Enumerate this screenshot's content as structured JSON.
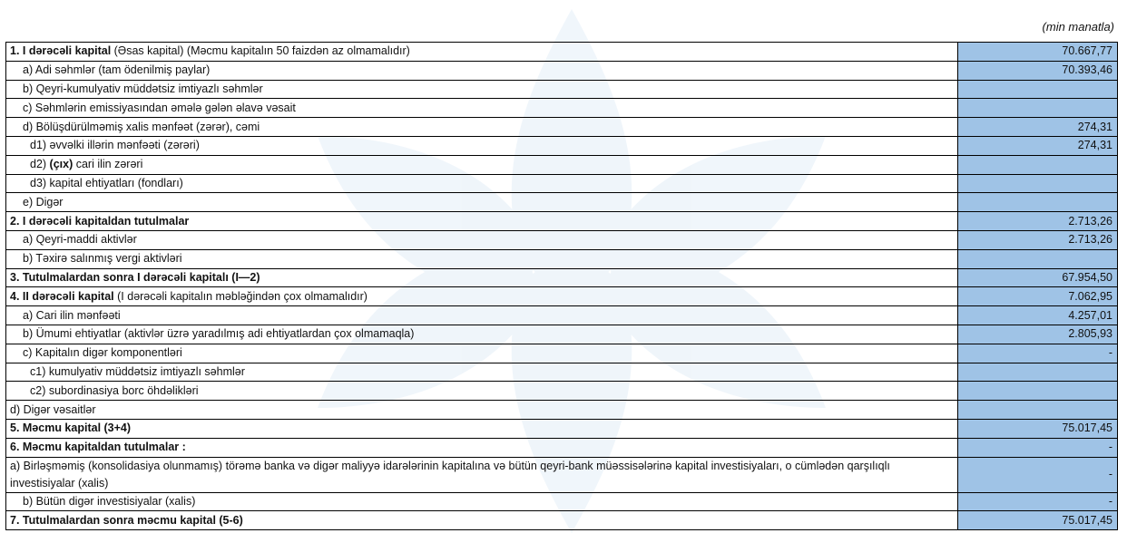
{
  "unit_label": "(min manatla)",
  "accent_color": "#9fc3e6",
  "rows": [
    {
      "bold": "1. I dərəcəli kapital",
      "label": " (Əsas kapital) (Məcmu kapitalın 50 faizdən  az olmamalıdır)",
      "value": "70.667,77",
      "indent": 0
    },
    {
      "bold": "",
      "label": "a) Adi səhmlər (tam ödenilmiş paylar)",
      "value": "70.393,46",
      "indent": 1
    },
    {
      "bold": "",
      "label": "b) Qeyri-kumulyativ müddətsiz imtiyazlı səhmlər",
      "value": "",
      "indent": 1
    },
    {
      "bold": "",
      "label": "c) Səhmlərin emissiyasından əmələ gələn  əlavə vəsait",
      "value": "",
      "indent": 1
    },
    {
      "bold": "",
      "label": "d)   Bölüşdürülməmiş xalis mənfəət (zərər), cəmi",
      "value": "274,31",
      "indent": 1
    },
    {
      "bold": "",
      "label": "d1) əvvəlki illərin mənfəəti (zərəri)",
      "value": "274,31",
      "indent": 2
    },
    {
      "pre": "d2) ",
      "bold": "(çıx)",
      "label": " cari ilin zərəri",
      "value": "",
      "indent": 2
    },
    {
      "bold": "",
      "label": "d3) kapital ehtiyatları (fondları)",
      "value": "",
      "indent": 2
    },
    {
      "bold": "",
      "label": "e) Digər",
      "value": "",
      "indent": 1
    },
    {
      "bold": "2. I dərəcəli kapitaldan  tutulmalar",
      "label": "",
      "value": "2.713,26",
      "indent": 0
    },
    {
      "bold": "",
      "label": "a) Qeyri-maddi aktivlər",
      "value": "2.713,26",
      "indent": 1
    },
    {
      "bold": "",
      "label": "b) Təxirə salınmış vergi aktivləri",
      "value": "",
      "indent": 1
    },
    {
      "bold": "3. Tutulmalardan sonra I dərəcəli kapitalı (I—2)",
      "label": "",
      "value": "67.954,50",
      "indent": 0
    },
    {
      "bold": "4. II dərəcəli  kapital",
      "label": " (I dərəcəli  kapitalın  məbləğindən çox olmamalıdır)",
      "value": "7.062,95",
      "indent": 0
    },
    {
      "bold": "",
      "label": "a) Cari ilin mənfəəti",
      "value": "4.257,01",
      "indent": 1
    },
    {
      "bold": "",
      "label": "b) Ümumi ehtiyatlar (aktivlər üzrə yaradılmış adi ehtiyatlardan çox olmamaqla)",
      "value": "2.805,93",
      "indent": 1
    },
    {
      "bold": "",
      "label": "c)  Kapitalın digər komponentləri",
      "value": "-",
      "indent": 1
    },
    {
      "bold": "",
      "label": "c1) kumulyativ müddətsiz imtiyazlı səhmlər",
      "value": "",
      "indent": 2
    },
    {
      "bold": "",
      "label": "c2) subordinasiya borc öhdəlikləri",
      "value": "",
      "indent": 2
    },
    {
      "bold": "",
      "label": "d) Digər vəsaitlər",
      "value": "",
      "indent": 0
    },
    {
      "bold": "5. Məcmu kapital (3+4)",
      "label": "",
      "value": "75.017,45",
      "indent": 0
    },
    {
      "bold": "6. Məcmu kapitaldan tutulmalar :",
      "label": "",
      "value": "-",
      "indent": 0
    },
    {
      "bold": "",
      "label": "   a)  Birləşməmiş (konsolidasiya olunmamış) törəmə banka və digər maliyyə idarələrinin kapitalına və bütün qeyri-bank müəssisələrinə kapital investisiyaları, o cümlədən qarşılıqlı investisiyalar (xalis)",
      "value": "-",
      "indent": 0,
      "two": true
    },
    {
      "bold": "",
      "label": "b)   Bütün digər investisiyalar (xalis)",
      "value": "-",
      "indent": 1
    },
    {
      "bold": "7. Tutulmalardan  sonra məcmu kapital (5-6)",
      "label": "",
      "value": "75.017,45",
      "indent": 0
    }
  ]
}
